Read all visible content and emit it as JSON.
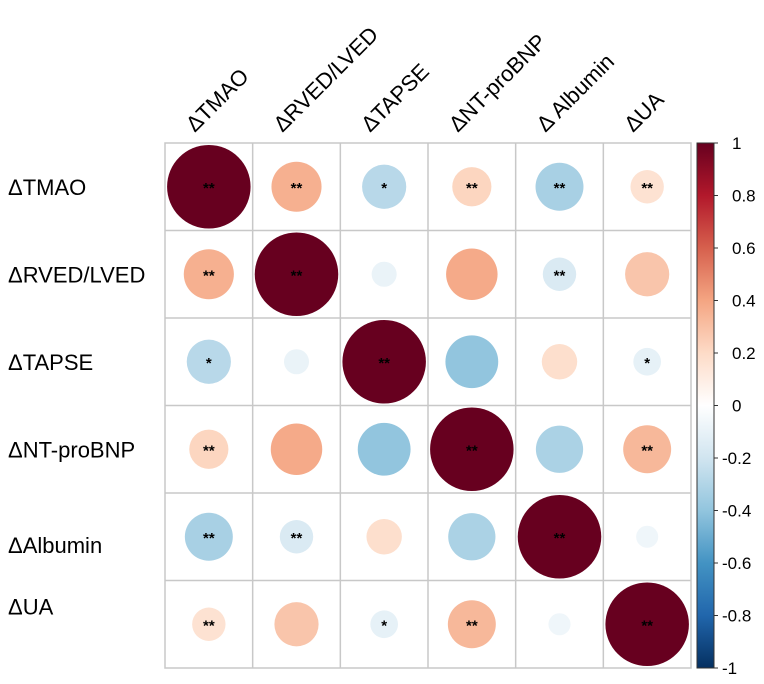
{
  "chart_data": {
    "type": "heatmap",
    "variables": [
      "ΔTMAO",
      "ΔRVED/LVED",
      "ΔTAPSE",
      "ΔNT-proBNP",
      "ΔAlbumin",
      "ΔUA"
    ],
    "row_labels": [
      "ΔTMAO",
      "ΔRVED/LVED",
      "ΔTAPSE",
      "ΔNT-proBNP",
      "ΔAlbumin",
      "ΔUA"
    ],
    "col_labels": [
      "ΔTMAO",
      "ΔRVED/LVED",
      "ΔTAPSE",
      "ΔNT-proBNP",
      "Δ Albumin",
      "ΔUA"
    ],
    "correlations": [
      [
        1.0,
        0.36,
        -0.28,
        0.22,
        -0.33,
        0.16
      ],
      [
        0.36,
        1.0,
        -0.09,
        0.38,
        -0.16,
        0.28
      ],
      [
        -0.28,
        -0.09,
        1.0,
        -0.4,
        0.18,
        -0.11
      ],
      [
        0.22,
        0.38,
        -0.4,
        1.0,
        -0.32,
        0.33
      ],
      [
        -0.33,
        -0.16,
        0.18,
        -0.32,
        1.0,
        -0.07
      ],
      [
        0.16,
        0.28,
        -0.11,
        0.33,
        -0.07,
        1.0
      ]
    ],
    "significance": [
      [
        "**",
        "**",
        "*",
        "**",
        "**",
        "**"
      ],
      [
        "**",
        "**",
        "",
        "",
        "**",
        ""
      ],
      [
        "*",
        "",
        "**",
        "",
        "",
        "*"
      ],
      [
        "**",
        "",
        "",
        "**",
        "",
        "**"
      ],
      [
        "**",
        "**",
        "",
        "",
        "**",
        ""
      ],
      [
        "**",
        "",
        "*",
        "**",
        "",
        "**"
      ]
    ],
    "colorbar": {
      "range": [
        -1,
        1
      ],
      "ticks": [
        "1",
        "0.8",
        "0.6",
        "0.4",
        "0.2",
        "0",
        "-0.2",
        "-0.4",
        "-0.6",
        "-0.8",
        "-1"
      ],
      "tick_values": [
        1,
        0.8,
        0.6,
        0.4,
        0.2,
        0,
        -0.2,
        -0.4,
        -0.6,
        -0.8,
        -1
      ],
      "colors": [
        "#67001F",
        "#B2182B",
        "#D6604D",
        "#F4A582",
        "#FDDBC7",
        "#FFFFFF",
        "#D1E5F0",
        "#92C5DE",
        "#4393C3",
        "#2166AC",
        "#053061"
      ],
      "position": "right"
    },
    "grid": true
  }
}
